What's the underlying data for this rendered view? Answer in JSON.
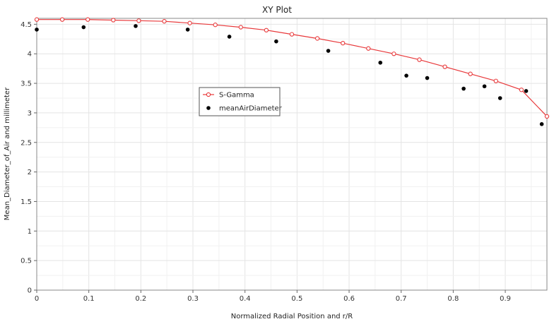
{
  "chart_data": {
    "type": "line",
    "title": "XY Plot",
    "xlabel": "Normalized Radial Position and r/R",
    "ylabel": "Mean_Diameter_of_Air and millimeter",
    "xlim": [
      0,
      0.98
    ],
    "ylim": [
      0,
      4.6
    ],
    "xticks": [
      0,
      0.1,
      0.2,
      0.3,
      0.4,
      0.5,
      0.6,
      0.7,
      0.8,
      0.9
    ],
    "xtick_labels": [
      "0",
      "0.1",
      "0.2",
      "0.3",
      "0.4",
      "0.5",
      "0.6",
      "0.7",
      "0.8",
      "0.9"
    ],
    "yticks": [
      0,
      0.5,
      1,
      1.5,
      2,
      2.5,
      3,
      3.5,
      4,
      4.5
    ],
    "ytick_labels": [
      "0",
      "0.5",
      "1",
      "1.5",
      "2",
      "2.5",
      "3",
      "3.5",
      "4",
      "4.5"
    ],
    "grid": true,
    "legend_placement": "center-left",
    "series": [
      {
        "name": "S-Gamma",
        "style": "line-open-circle",
        "color": "#e8383a",
        "x": [
          0,
          0.049,
          0.098,
          0.147,
          0.196,
          0.245,
          0.294,
          0.343,
          0.392,
          0.441,
          0.49,
          0.539,
          0.588,
          0.637,
          0.686,
          0.735,
          0.784,
          0.833,
          0.882,
          0.931,
          0.98
        ],
        "y": [
          4.58,
          4.58,
          4.58,
          4.57,
          4.56,
          4.55,
          4.52,
          4.49,
          4.45,
          4.4,
          4.33,
          4.26,
          4.18,
          4.09,
          4.0,
          3.9,
          3.78,
          3.66,
          3.54,
          3.39,
          2.94
        ]
      },
      {
        "name": "meanAirDiameter",
        "style": "marker-filled-circle",
        "color": "#000000",
        "x": [
          0.0,
          0.09,
          0.19,
          0.29,
          0.37,
          0.46,
          0.56,
          0.66,
          0.71,
          0.75,
          0.82,
          0.86,
          0.89,
          0.94,
          0.97
        ],
        "y": [
          4.41,
          4.45,
          4.47,
          4.41,
          4.29,
          4.21,
          4.05,
          3.85,
          3.63,
          3.59,
          3.41,
          3.45,
          3.25,
          3.37,
          2.81
        ]
      }
    ]
  }
}
